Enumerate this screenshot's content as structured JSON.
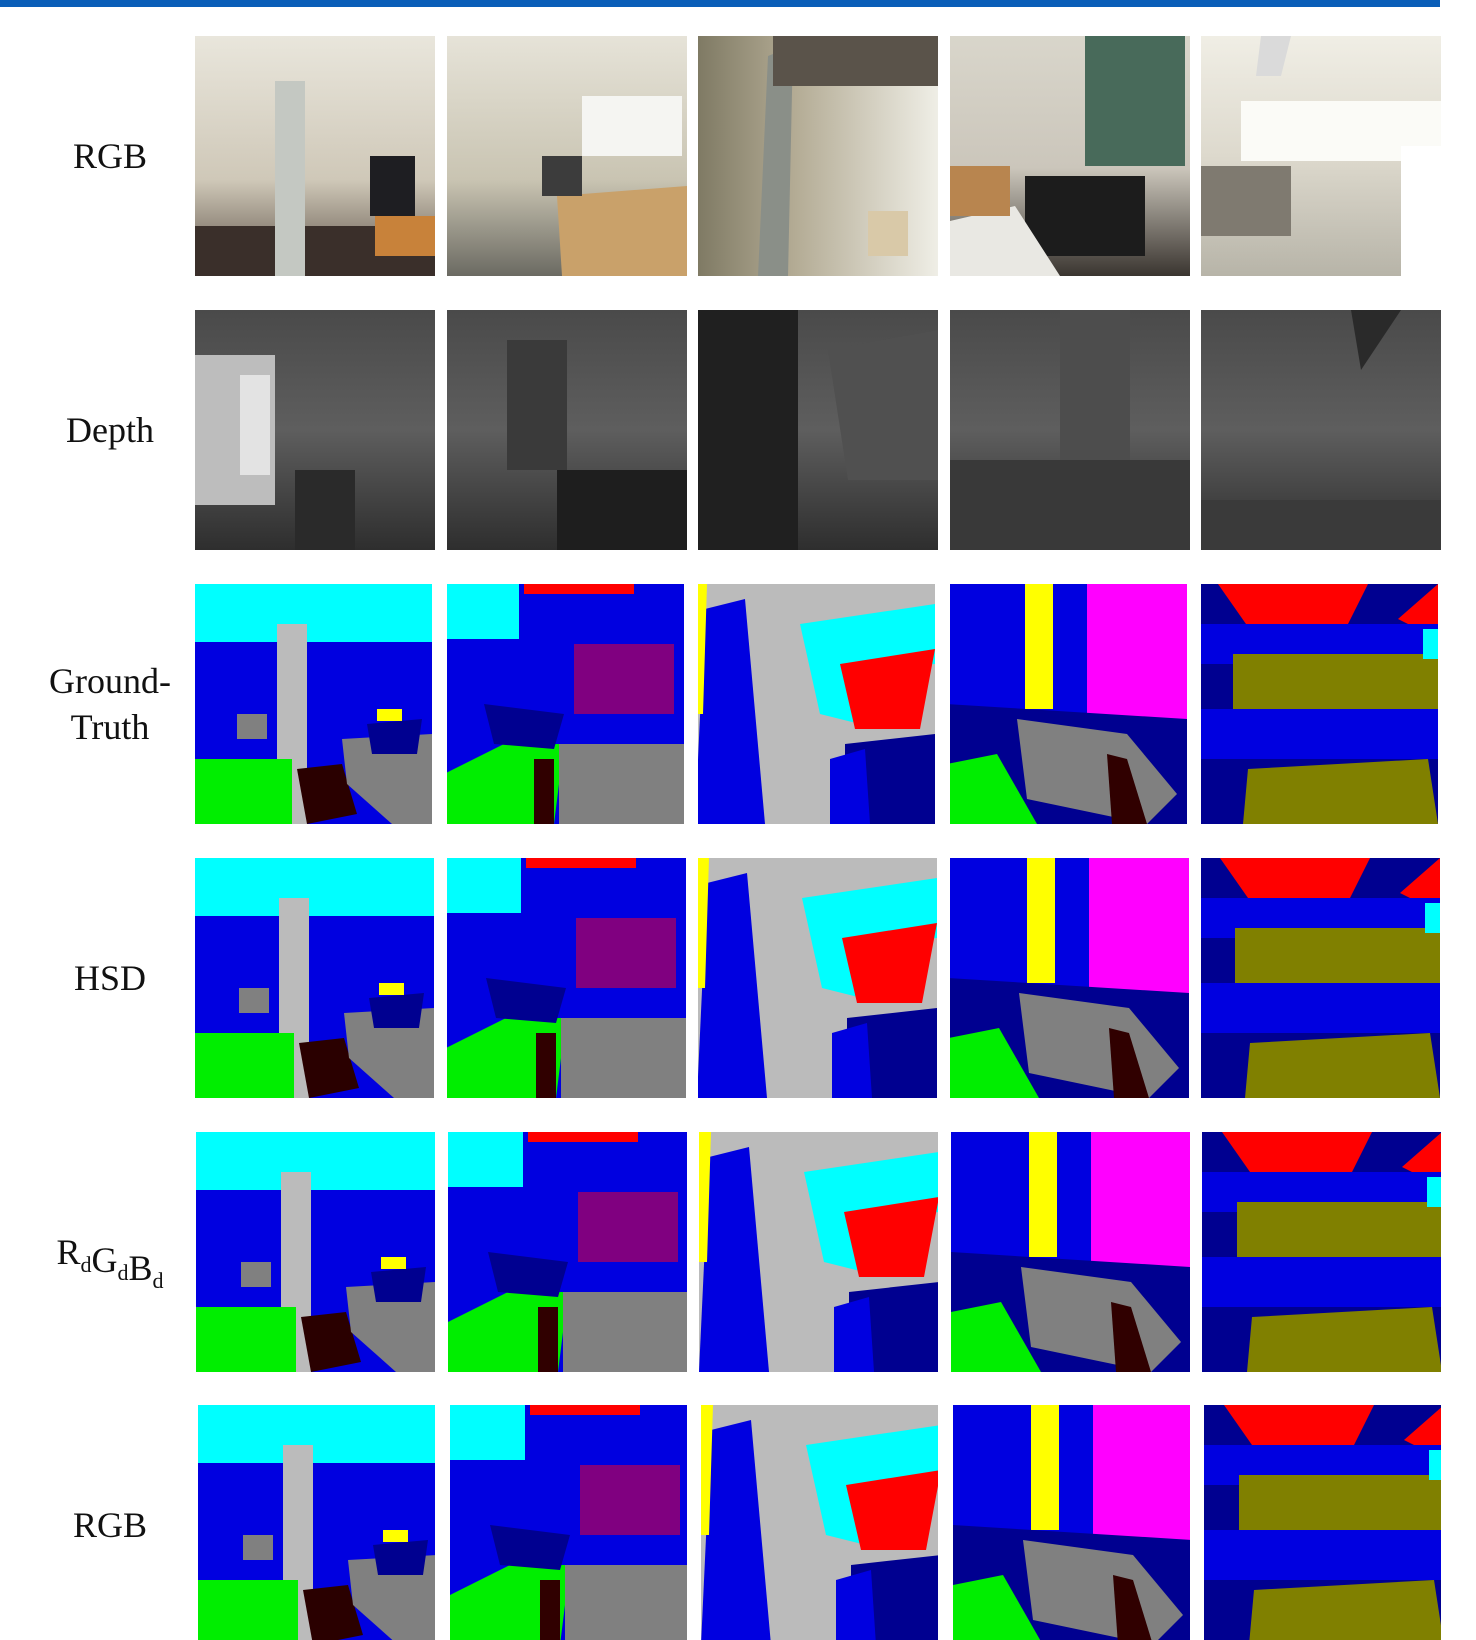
{
  "figure": {
    "rows": [
      {
        "label": [
          "RGB"
        ]
      },
      {
        "label": [
          "Depth"
        ]
      },
      {
        "label": [
          "Ground-",
          "Truth"
        ]
      },
      {
        "label": [
          "HSD"
        ]
      },
      {
        "label_parts": [
          {
            "base": "R",
            "sub": "d"
          },
          {
            "base": "G",
            "sub": "d"
          },
          {
            "base": "B",
            "sub": "d"
          }
        ]
      },
      {
        "label": [
          "RGB"
        ]
      }
    ]
  }
}
